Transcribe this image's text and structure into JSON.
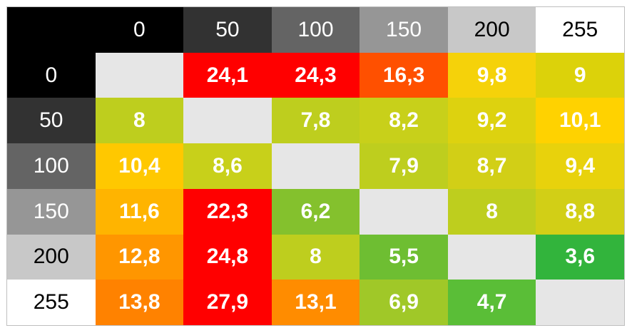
{
  "chart_data": {
    "type": "heatmap",
    "x_categories": [
      "0",
      "50",
      "100",
      "150",
      "200",
      "255"
    ],
    "y_categories": [
      "0",
      "50",
      "100",
      "150",
      "200",
      "255"
    ],
    "header_colors": [
      "#000000",
      "#323232",
      "#646464",
      "#969696",
      "#c8c8c8",
      "#ffffff"
    ],
    "header_text_colors": [
      "#ffffff",
      "#ffffff",
      "#ffffff",
      "#ffffff",
      "#000000",
      "#000000"
    ],
    "values": [
      [
        null,
        "24,1",
        "24,3",
        "16,3",
        "9,8",
        "9"
      ],
      [
        "8",
        null,
        "7,8",
        "8,2",
        "9,2",
        "10,1"
      ],
      [
        "10,4",
        "8,6",
        null,
        "7,9",
        "8,7",
        "9,4"
      ],
      [
        "11,6",
        "22,3",
        "6,2",
        null,
        "8",
        "8,8"
      ],
      [
        "12,8",
        "24,8",
        "8",
        "5,5",
        null,
        "3,6"
      ],
      [
        "13,8",
        "27,9",
        "13,1",
        "6,9",
        "4,7",
        null
      ]
    ],
    "cell_colors": [
      [
        "#e6e6e6",
        "#ff0000",
        "#ff0000",
        "#ff5000",
        "#f5d20a",
        "#dcd20a"
      ],
      [
        "#bece1e",
        "#e6e6e6",
        "#bece1e",
        "#c8d01a",
        "#ddd20f",
        "#ffd200"
      ],
      [
        "#ffc800",
        "#c8d01a",
        "#e6e6e6",
        "#bece1e",
        "#d2cf16",
        "#e8d20c"
      ],
      [
        "#ffb400",
        "#ff0000",
        "#84c12d",
        "#e6e6e6",
        "#bece1e",
        "#d2cf16"
      ],
      [
        "#ff9600",
        "#ff0000",
        "#bece1e",
        "#6ebe32",
        "#e6e6e6",
        "#32b43c"
      ],
      [
        "#ff8200",
        "#ff0000",
        "#ff8c00",
        "#a0c828",
        "#5abe37",
        "#e6e6e6"
      ]
    ]
  }
}
